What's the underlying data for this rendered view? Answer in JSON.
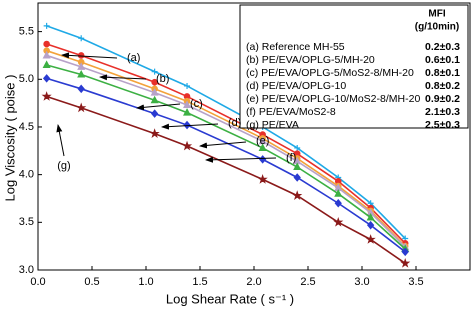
{
  "chart_data": {
    "type": "line",
    "x_label": "Log Shear Rate ( s⁻¹ )",
    "y_label": "Log Viscosity ( poise )",
    "x": [
      0.08,
      0.4,
      1.08,
      1.38,
      2.08,
      2.4,
      2.78,
      3.08,
      3.4
    ],
    "series": [
      {
        "name": "(a) Reference MH-55",
        "color": "#1fa9e6",
        "marker": "plus",
        "values": [
          5.56,
          5.43,
          5.08,
          4.93,
          4.5,
          4.28,
          3.97,
          3.7,
          3.33
        ]
      },
      {
        "name": "(b) PE/EVA/OPLG-5/MH-20",
        "color": "#e8302a",
        "marker": "circle",
        "values": [
          5.37,
          5.25,
          4.97,
          4.82,
          4.42,
          4.22,
          3.93,
          3.65,
          3.28
        ]
      },
      {
        "name": "(c) PE/EVA/OPLG-5/MoS2-8/MH-20",
        "color": "#f3a23a",
        "marker": "circle",
        "values": [
          5.3,
          5.18,
          4.9,
          4.77,
          4.38,
          4.17,
          3.88,
          3.62,
          3.25
        ]
      },
      {
        "name": "(d) PE/EVA/OPLG-10",
        "color": "#b7a2c9",
        "marker": "triangle",
        "values": [
          5.25,
          5.13,
          4.86,
          4.73,
          4.35,
          4.14,
          3.86,
          3.6,
          3.24
        ]
      },
      {
        "name": "(e) PE/EVA/OPLG-10/MoS2-8/MH-20",
        "color": "#3cb043",
        "marker": "triangle",
        "values": [
          5.15,
          5.05,
          4.78,
          4.65,
          4.28,
          4.08,
          3.8,
          3.55,
          3.22
        ]
      },
      {
        "name": "(f) PE/EVA/MoS2-8",
        "color": "#2a3bd1",
        "marker": "diamond",
        "values": [
          5.01,
          4.9,
          4.64,
          4.52,
          4.16,
          3.97,
          3.7,
          3.47,
          3.19
        ]
      },
      {
        "name": "(g) PE/EVA",
        "color": "#8b1a1a",
        "marker": "star",
        "values": [
          4.82,
          4.7,
          4.43,
          4.3,
          3.95,
          3.78,
          3.5,
          3.32,
          3.07
        ]
      }
    ],
    "legend_header": [
      "MFI",
      "(g/10min)"
    ],
    "mfi": [
      "0.2±0.3",
      "0.6±0.1",
      "0.8±0.1",
      "0.8±0.2",
      "0.9±0.2",
      "2.1±0.3",
      "2.5±0.3"
    ],
    "annotations": [
      "(a)",
      "(b)",
      "(c)",
      "(d)",
      "(e)",
      "(f)",
      "(g)"
    ],
    "xlim": [
      0,
      4.0
    ],
    "ylim": [
      3.0,
      5.8
    ],
    "xticks": [
      {
        "value": 0,
        "label": "0.0"
      },
      0.5,
      {
        "value": 1,
        "label": "1.0"
      },
      1.5,
      {
        "value": 2,
        "label": "2.0"
      },
      2.5,
      {
        "value": 3,
        "label": "3.0"
      },
      3.5
    ],
    "yticks": [
      {
        "value": 3,
        "label": "3.0"
      },
      3.5,
      {
        "value": 4,
        "label": "4.0"
      },
      4.5,
      {
        "value": 5,
        "label": "5.0"
      },
      5.5
    ]
  }
}
